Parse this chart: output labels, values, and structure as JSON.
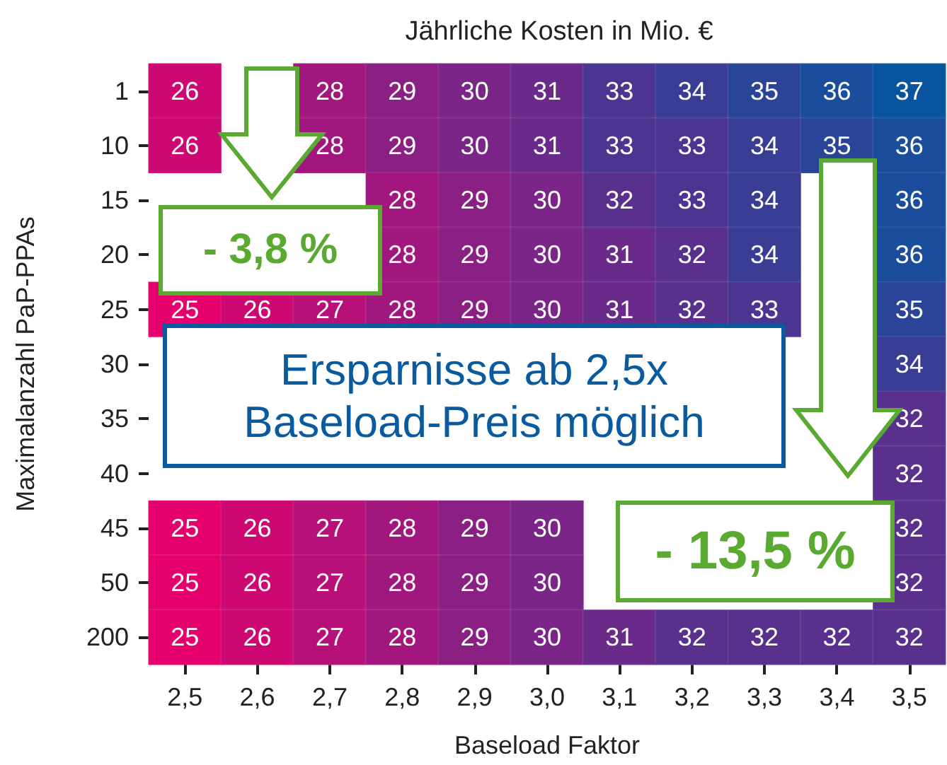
{
  "chart_data": {
    "type": "heatmap",
    "title": "Jährliche Kosten in Mio. €",
    "xlabel": "Baseload Faktor",
    "ylabel": "Maximalanzahl PaP-PPAs",
    "categories": [
      "2,5",
      "2,6",
      "2,7",
      "2,8",
      "2,9",
      "3,0",
      "3,1",
      "3,2",
      "3,3",
      "3,4",
      "3,5"
    ],
    "y_categories": [
      "1",
      "10",
      "15",
      "20",
      "25",
      "30",
      "35",
      "40",
      "45",
      "50",
      "200"
    ],
    "cells": [
      [
        26,
        null,
        28,
        29,
        30,
        31,
        33,
        34,
        35,
        36,
        37
      ],
      [
        26,
        null,
        28,
        29,
        30,
        31,
        33,
        33,
        34,
        35,
        36
      ],
      [
        null,
        null,
        null,
        28,
        29,
        30,
        32,
        33,
        34,
        null,
        36
      ],
      [
        null,
        null,
        null,
        28,
        29,
        30,
        31,
        32,
        34,
        null,
        36
      ],
      [
        25,
        26,
        27,
        28,
        29,
        30,
        31,
        32,
        33,
        null,
        35
      ],
      [
        null,
        null,
        null,
        null,
        null,
        null,
        null,
        null,
        null,
        null,
        34
      ],
      [
        null,
        null,
        null,
        null,
        null,
        null,
        null,
        null,
        null,
        null,
        32
      ],
      [
        null,
        null,
        null,
        null,
        null,
        null,
        null,
        null,
        null,
        null,
        32
      ],
      [
        25,
        26,
        27,
        28,
        29,
        30,
        null,
        null,
        null,
        null,
        32
      ],
      [
        25,
        26,
        27,
        28,
        29,
        30,
        null,
        null,
        null,
        null,
        32
      ],
      [
        25,
        26,
        27,
        28,
        29,
        30,
        31,
        32,
        32,
        32,
        32
      ]
    ],
    "data_labels": true,
    "annotations": [
      "- 3,8 %",
      "Ersparnisse ab 2,5x Baseload-Preis möglich",
      "- 13,5 %"
    ]
  }
}
